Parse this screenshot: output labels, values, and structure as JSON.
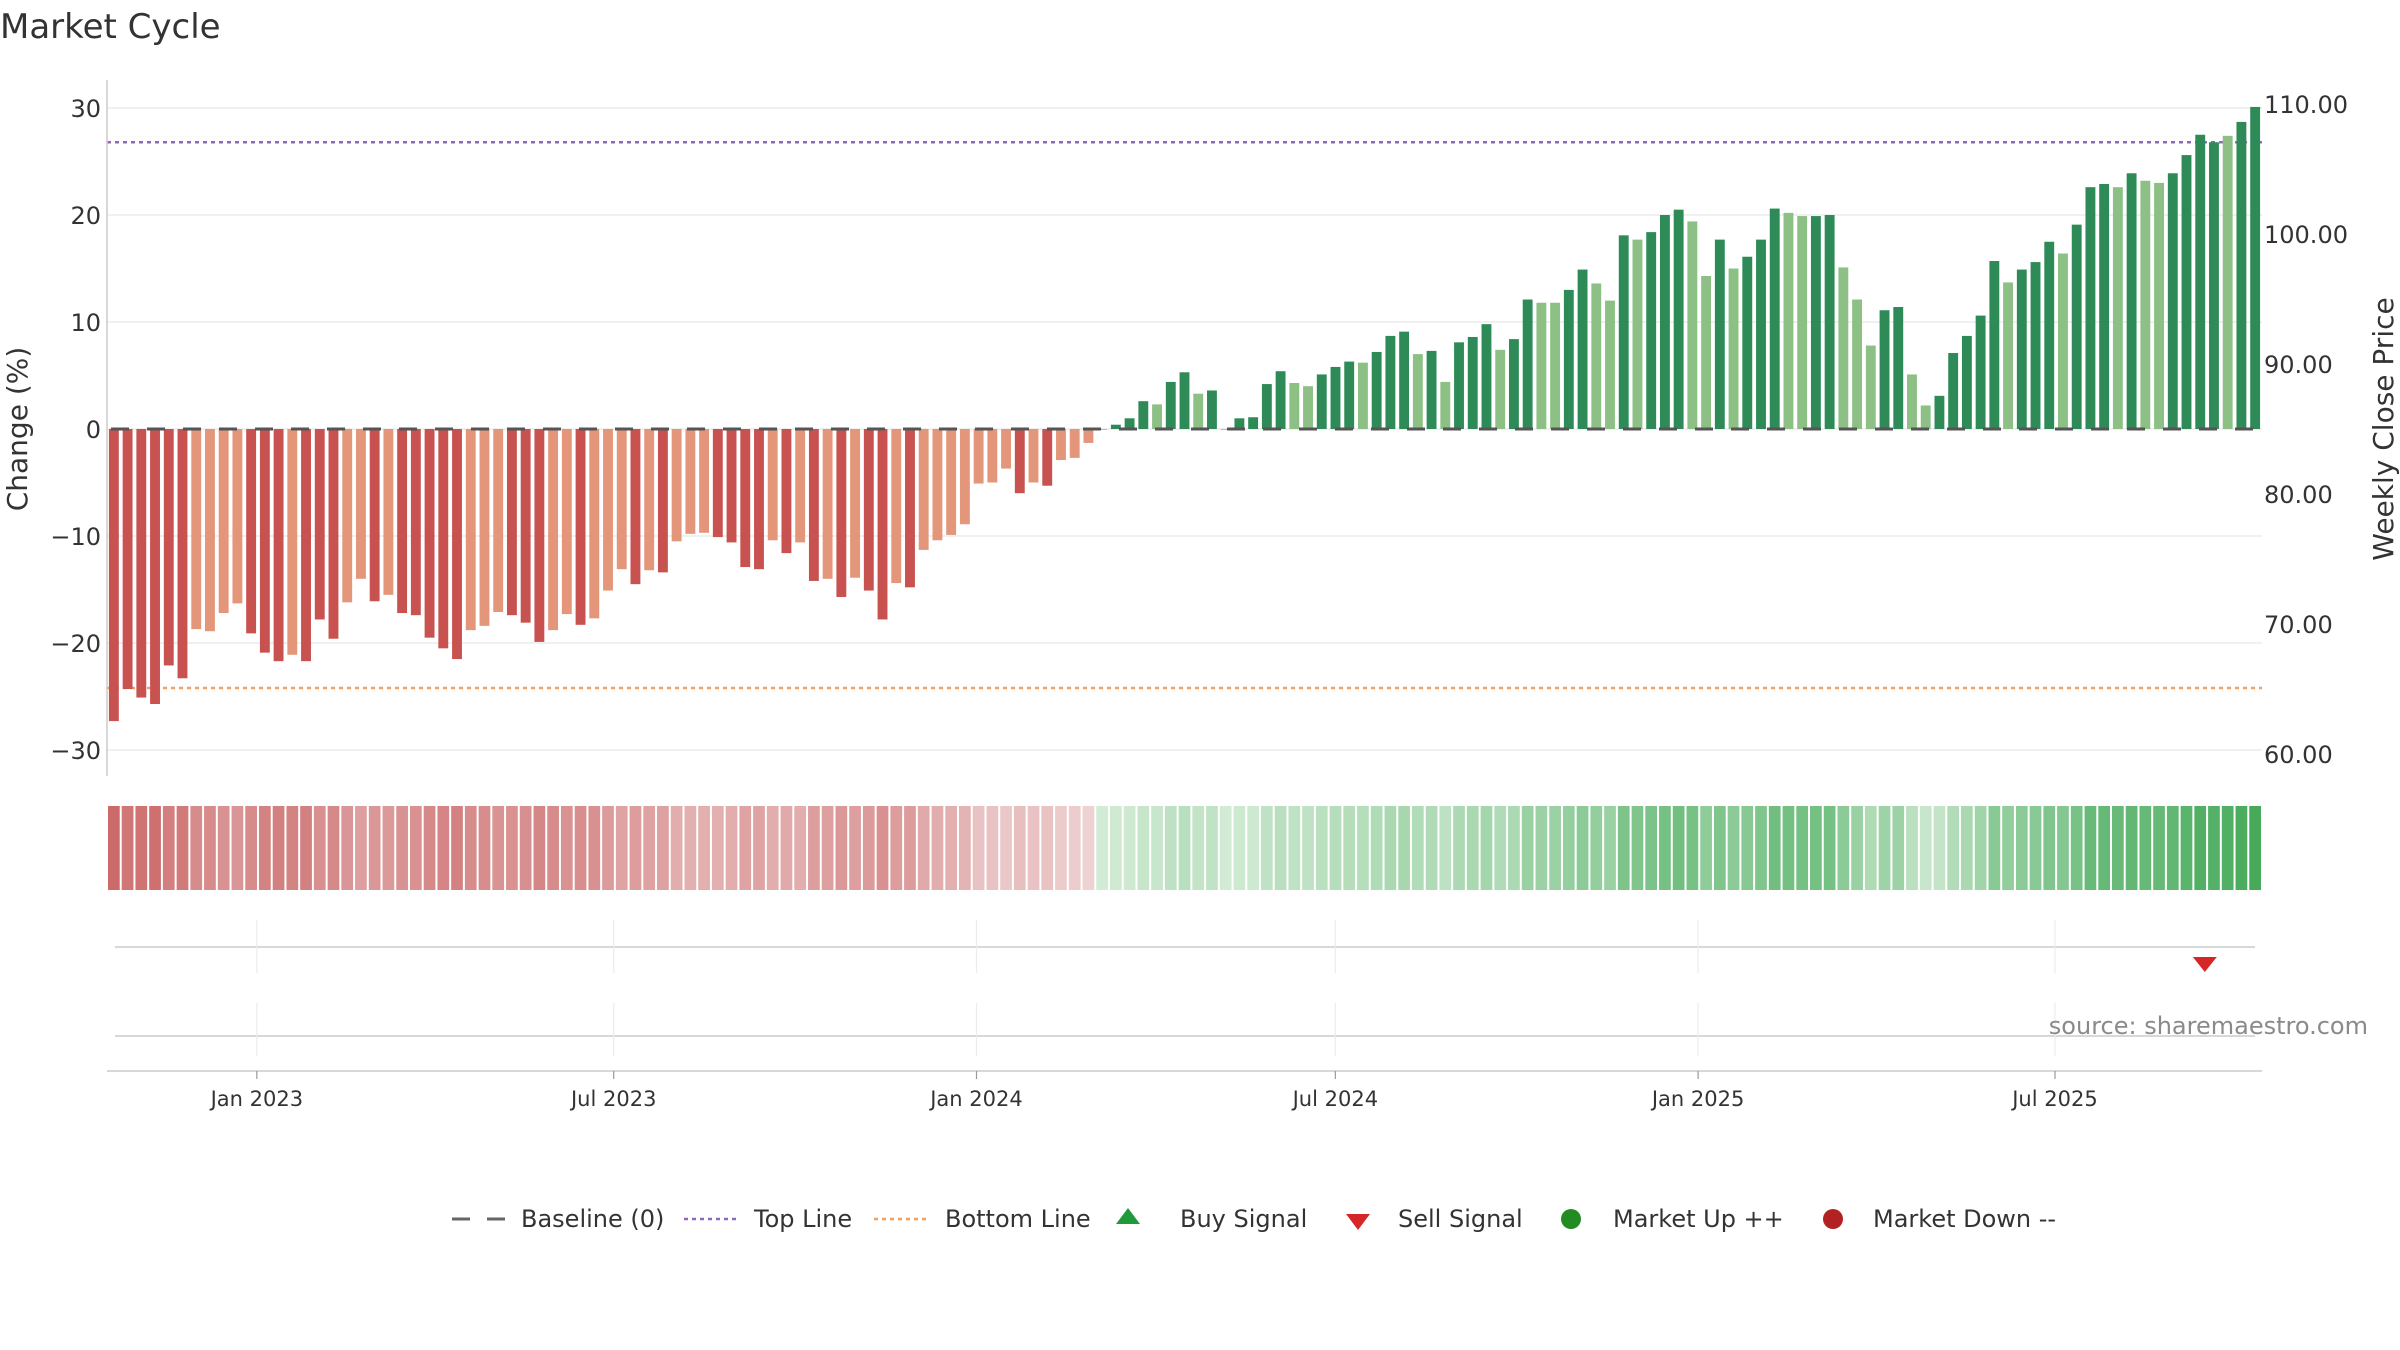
{
  "chart_data": {
    "type": "bar",
    "title": "Market Cycle",
    "ylabel_left": "Change (%)",
    "ylabel_right": "Weekly Close Price",
    "ylim_left": [
      -33,
      33
    ],
    "ylim_right": [
      57.75,
      112.5
    ],
    "left_ticks": [
      "30",
      "20",
      "10",
      "0",
      "−10",
      "−20",
      "−30"
    ],
    "left_tick_values": [
      30,
      20,
      10,
      0,
      -10,
      -20,
      -30
    ],
    "right_ticks": [
      "110.00",
      "100.00",
      "90.00",
      "80.00",
      "70.00",
      "60.00"
    ],
    "right_tick_values": [
      110,
      100,
      90,
      80,
      70,
      60
    ],
    "x_start": "2022-10-17",
    "x_end": "2025-10-14",
    "x_ticks": [
      {
        "date": "2023-01-01",
        "label": "Jan 2023"
      },
      {
        "date": "2023-07-01",
        "label": "Jul 2023"
      },
      {
        "date": "2024-01-01",
        "label": "Jan 2024"
      },
      {
        "date": "2024-07-01",
        "label": "Jul 2024"
      },
      {
        "date": "2025-01-01",
        "label": "Jan 2025"
      },
      {
        "date": "2025-07-01",
        "label": "Jul 2025"
      }
    ],
    "top_line": 26.8,
    "bottom_line": -24.2,
    "baseline": 0,
    "values": [
      -27.3,
      -24.3,
      -25.1,
      -25.7,
      -22.1,
      -23.3,
      -18.7,
      -18.9,
      -17.2,
      -16.3,
      -19.1,
      -20.9,
      -21.7,
      -21.1,
      -21.7,
      -17.8,
      -19.6,
      -16.2,
      -14.0,
      -16.1,
      -15.5,
      -17.2,
      -17.4,
      -19.5,
      -20.5,
      -21.5,
      -18.8,
      -18.4,
      -17.1,
      -17.4,
      -18.1,
      -19.9,
      -18.8,
      -17.3,
      -18.3,
      -17.7,
      -15.1,
      -13.1,
      -14.5,
      -13.2,
      -13.4,
      -10.5,
      -9.8,
      -9.7,
      -10.1,
      -10.6,
      -12.9,
      -13.1,
      -10.4,
      -11.6,
      -10.6,
      -14.2,
      -14.0,
      -15.7,
      -13.9,
      -15.1,
      -17.8,
      -14.4,
      -14.8,
      -11.3,
      -10.4,
      -9.9,
      -8.9,
      -5.1,
      -5.0,
      -3.7,
      -6.0,
      -5.0,
      -5.3,
      -2.9,
      -2.7,
      -1.3,
      0.0,
      0.4,
      1.0,
      2.6,
      2.3,
      4.4,
      5.3,
      3.3,
      3.6,
      0.0,
      1.0,
      1.1,
      4.2,
      5.4,
      4.3,
      4.0,
      5.1,
      5.8,
      6.3,
      6.2,
      7.2,
      8.7,
      9.1,
      7.0,
      7.3,
      4.4,
      8.1,
      8.6,
      9.8,
      7.4,
      8.4,
      12.1,
      11.8,
      11.8,
      13.0,
      14.9,
      13.6,
      12.0,
      18.1,
      17.7,
      18.4,
      20.0,
      20.5,
      19.4,
      14.3,
      17.7,
      15.0,
      16.1,
      17.7,
      20.6,
      20.2,
      19.9,
      19.9,
      20.0,
      15.1,
      12.1,
      7.8,
      11.1,
      11.4,
      5.1,
      2.2,
      3.1,
      7.1,
      8.7,
      10.6,
      15.7,
      13.7,
      14.9,
      15.6,
      17.5,
      16.4,
      19.1,
      22.6,
      22.9,
      22.6,
      23.9,
      23.2,
      23.0,
      23.9,
      25.6,
      27.5,
      26.8,
      27.4,
      28.7,
      30.1
    ],
    "shades": [
      2,
      2,
      2,
      2,
      2,
      2,
      1,
      1,
      1,
      1,
      2,
      2,
      2,
      1,
      2,
      2,
      2,
      1,
      1,
      2,
      1,
      2,
      2,
      2,
      2,
      2,
      1,
      1,
      1,
      2,
      2,
      2,
      1,
      1,
      2,
      1,
      1,
      1,
      2,
      1,
      2,
      1,
      1,
      1,
      2,
      2,
      2,
      2,
      1,
      2,
      1,
      2,
      1,
      2,
      1,
      2,
      2,
      1,
      2,
      1,
      1,
      1,
      1,
      1,
      1,
      1,
      2,
      1,
      2,
      1,
      1,
      1,
      1,
      2,
      2,
      2,
      1,
      2,
      2,
      1,
      2,
      1,
      2,
      2,
      2,
      2,
      1,
      1,
      2,
      2,
      2,
      1,
      2,
      2,
      2,
      1,
      2,
      1,
      2,
      2,
      2,
      1,
      2,
      2,
      1,
      1,
      2,
      2,
      1,
      1,
      2,
      1,
      2,
      2,
      2,
      1,
      1,
      2,
      1,
      2,
      2,
      2,
      1,
      1,
      2,
      2,
      1,
      1,
      1,
      2,
      2,
      1,
      1,
      2,
      2,
      2,
      2,
      2,
      1,
      2,
      2,
      2,
      1,
      2,
      2,
      2,
      1,
      2,
      1,
      1,
      2,
      2,
      2,
      2,
      1,
      2,
      2
    ],
    "colors": {
      "down_dark": "#c85250",
      "down_light": "#e4967a",
      "up_dark": "#2e8b57",
      "up_light": "#8cc084",
      "top_line": "#9467bd",
      "bottom_line": "#f0a060",
      "baseline": "#555555",
      "sell_signal": "#d62728",
      "buy_signal": "#1f9a3a",
      "market_up": "#228b22",
      "market_down": "#b22222"
    },
    "sell_signals": [
      "2025-09-15"
    ],
    "buy_signals": [],
    "legend": [
      {
        "label": "Baseline (0)",
        "marker": "dash"
      },
      {
        "label": "Top Line",
        "marker": "dotted-purple"
      },
      {
        "label": "Bottom Line",
        "marker": "dotted-orange"
      },
      {
        "label": "Buy Signal",
        "marker": "triangle-up"
      },
      {
        "label": "Sell Signal",
        "marker": "triangle-down"
      },
      {
        "label": "Market Up ++",
        "marker": "circle-green"
      },
      {
        "label": "Market Down --",
        "marker": "circle-red"
      }
    ]
  },
  "source": "source: sharemaestro.com"
}
